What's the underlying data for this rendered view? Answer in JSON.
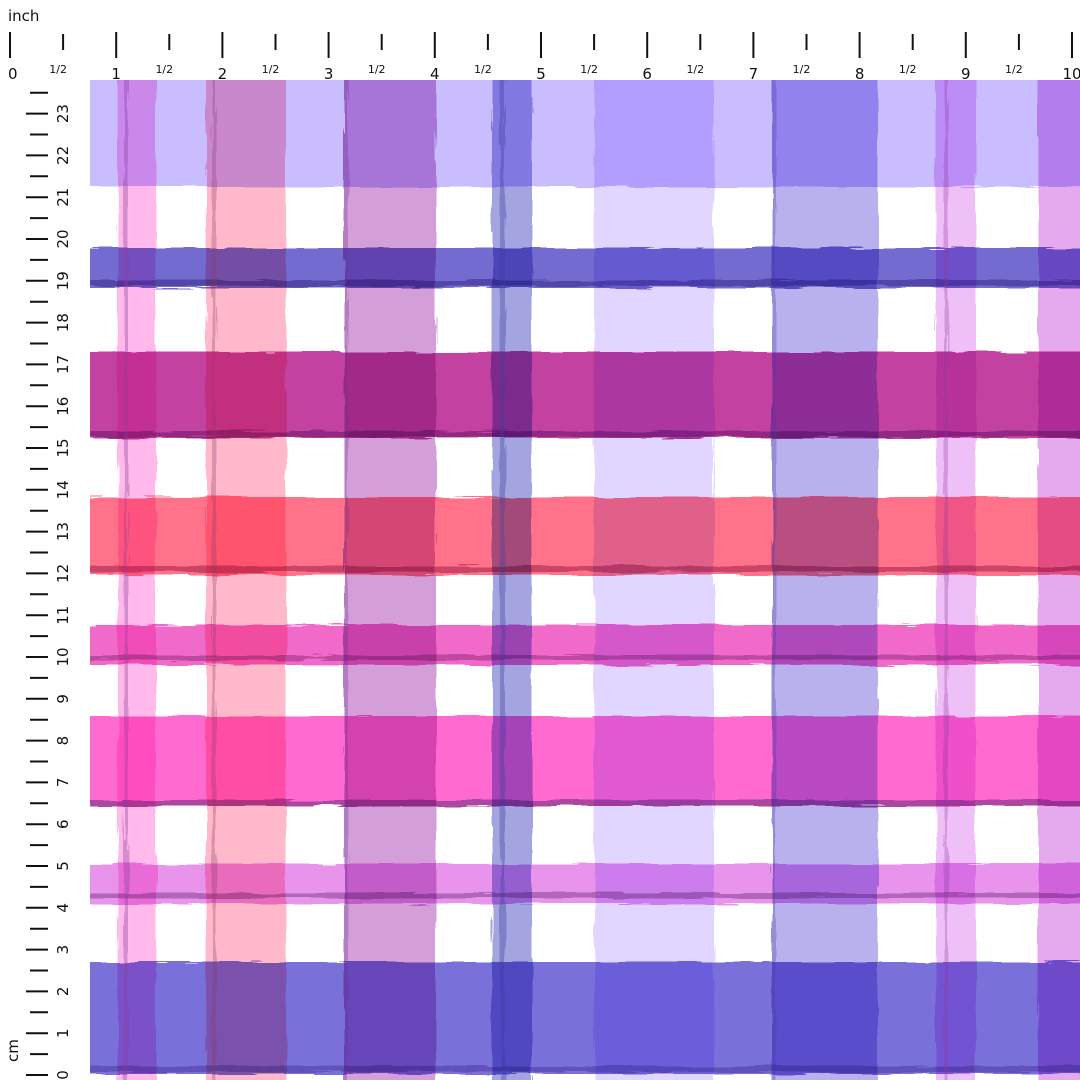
{
  "rulers": {
    "top_unit_label": "inch",
    "left_unit_label": "cm",
    "inch_labels": [
      "0",
      "1/2",
      "1",
      "1/2",
      "2",
      "1/2",
      "3",
      "1/2",
      "4",
      "1/2",
      "5",
      "1/2",
      "6",
      "1/2",
      "7",
      "1/2",
      "8",
      "1/2",
      "9",
      "1/2",
      "10"
    ],
    "cm_labels": [
      "0",
      "1",
      "2",
      "3",
      "4",
      "5",
      "6",
      "7",
      "8",
      "9",
      "10",
      "11",
      "12",
      "13",
      "14",
      "15",
      "16",
      "17",
      "18",
      "19",
      "20",
      "21",
      "22",
      "23"
    ]
  },
  "pattern": {
    "style": "watercolor-plaid",
    "palette": {
      "lavender": "#b9a8ff",
      "violet": "#6f5fd8",
      "magenta": "#c0309a",
      "coral": "#ff5a78",
      "hot_pink": "#ff4fc8",
      "light_pink": "#ff8fe0",
      "dark_line": "#5a2a7a"
    }
  }
}
